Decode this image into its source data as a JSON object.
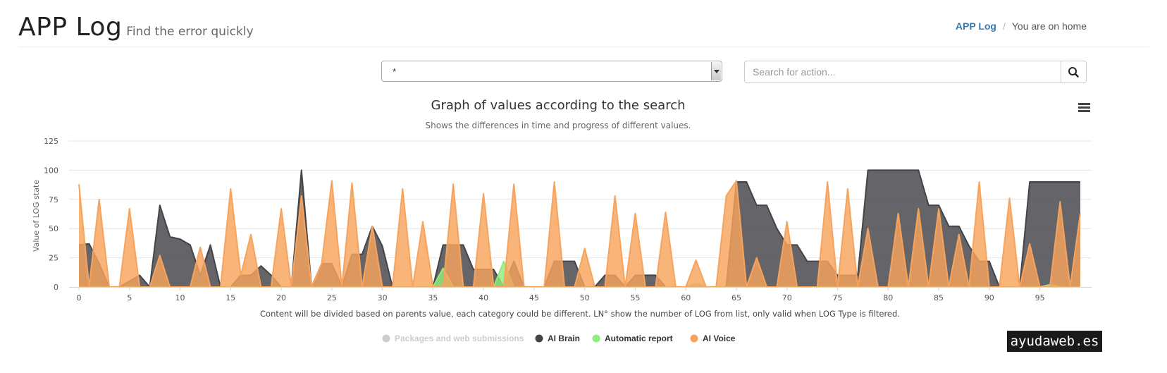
{
  "header": {
    "title": "APP Log",
    "subtitle": "Find the error quickly"
  },
  "breadcrumb": {
    "link": "APP Log",
    "separator": "/",
    "current": "You are on home"
  },
  "filters": {
    "select_value": "*",
    "search_placeholder": "Search for action..."
  },
  "icons": {
    "search_button": "search-icon",
    "chart_menu": "hamburger-menu-icon"
  },
  "watermark": "ayudaweb.es",
  "chart_data": {
    "type": "area",
    "title": "Graph of values according to the search",
    "subtitle": "Shows the differences in time and progress of different values.",
    "ylabel": "Value of LOG state",
    "caption": "Content will be divided based on parents value, each category could be different. LN° show the number of LOG from list, only valid when LOG Type is filtered.",
    "ylim": [
      0,
      125
    ],
    "y_ticks": [
      0,
      25,
      50,
      75,
      100,
      125
    ],
    "xlim": [
      0,
      99
    ],
    "x_ticks": [
      0,
      5,
      10,
      15,
      20,
      25,
      30,
      35,
      40,
      45,
      50,
      55,
      60,
      65,
      70,
      75,
      80,
      85,
      90,
      95
    ],
    "grid": true,
    "legend_position": "bottom-center",
    "series": [
      {
        "name": "Packages and web submissions",
        "color": "#cccccc",
        "visible": false,
        "values": []
      },
      {
        "name": "AI Brain",
        "color": "#434348",
        "visible": true,
        "values": [
          36,
          37,
          20,
          0,
          0,
          5,
          10,
          0,
          70,
          43,
          41,
          36,
          10,
          36,
          0,
          0,
          10,
          10,
          18,
          10,
          0,
          0,
          100,
          0,
          20,
          20,
          0,
          28,
          28,
          52,
          35,
          0,
          0,
          0,
          0,
          0,
          36,
          36,
          36,
          15,
          15,
          15,
          0,
          22,
          0,
          0,
          0,
          22,
          22,
          22,
          0,
          0,
          10,
          10,
          0,
          10,
          10,
          10,
          0,
          0,
          0,
          0,
          0,
          0,
          0,
          90,
          90,
          70,
          70,
          50,
          36,
          36,
          22,
          22,
          22,
          10,
          10,
          10,
          100,
          100,
          100,
          100,
          100,
          100,
          70,
          70,
          52,
          52,
          35,
          22,
          22,
          0,
          0,
          0,
          90,
          90,
          90,
          90,
          90,
          90
        ]
      },
      {
        "name": "Automatic report",
        "color": "#90ed7d",
        "visible": true,
        "values": [
          0,
          0,
          0,
          0,
          0,
          0,
          0,
          0,
          0,
          0,
          0,
          0,
          0,
          0,
          0,
          0,
          0,
          0,
          0,
          0,
          0,
          0,
          0,
          0,
          0,
          0,
          0,
          0,
          0,
          0,
          0,
          0,
          0,
          0,
          0,
          0,
          16,
          0,
          0,
          0,
          0,
          0,
          22,
          0,
          0,
          0,
          0,
          0,
          0,
          0,
          0,
          0,
          0,
          0,
          0,
          0,
          0,
          0,
          0,
          0,
          0,
          3,
          0,
          0,
          0,
          0,
          0,
          0,
          0,
          0,
          0,
          0,
          0,
          0,
          0,
          0,
          0,
          0,
          0,
          0,
          0,
          0,
          0,
          0,
          0,
          0,
          0,
          0,
          0,
          0,
          0,
          0,
          0,
          0,
          0,
          0,
          2,
          0,
          0,
          0
        ]
      },
      {
        "name": "AI Voice",
        "color": "#f7a35c",
        "visible": true,
        "values": [
          88,
          0,
          75,
          0,
          0,
          67,
          0,
          0,
          27,
          0,
          0,
          0,
          34,
          0,
          0,
          84,
          10,
          45,
          0,
          0,
          67,
          0,
          78,
          0,
          20,
          91,
          0,
          89,
          0,
          52,
          0,
          0,
          84,
          0,
          56,
          0,
          0,
          88,
          0,
          0,
          80,
          0,
          0,
          88,
          0,
          0,
          0,
          90,
          0,
          0,
          33,
          0,
          0,
          78,
          0,
          63,
          0,
          0,
          64,
          0,
          0,
          23,
          0,
          0,
          78,
          91,
          0,
          25,
          0,
          0,
          56,
          0,
          0,
          0,
          90,
          0,
          84,
          0,
          50,
          0,
          0,
          63,
          0,
          67,
          0,
          67,
          0,
          45,
          0,
          90,
          0,
          0,
          76,
          0,
          37,
          0,
          0,
          73,
          0,
          63
        ]
      }
    ]
  }
}
